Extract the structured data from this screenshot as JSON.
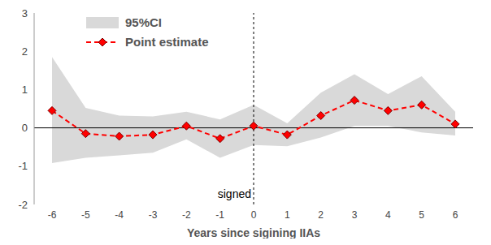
{
  "chart_data": {
    "type": "line",
    "x_label": "Years since sigining IIAs",
    "categories": [
      "-6",
      "-5",
      "-4",
      "-3",
      "-2",
      "-1",
      "0",
      "1",
      "2",
      "3",
      "4",
      "5",
      "6"
    ],
    "series": [
      {
        "name": "95%CI",
        "type": "area",
        "color": "#d9d9d9",
        "lower": [
          -0.92,
          -0.78,
          -0.72,
          -0.65,
          -0.3,
          -0.78,
          -0.45,
          -0.48,
          -0.25,
          0.05,
          0.05,
          -0.12,
          -0.2
        ],
        "upper": [
          1.85,
          0.52,
          0.32,
          0.3,
          0.42,
          0.22,
          0.6,
          0.12,
          0.92,
          1.4,
          0.88,
          1.35,
          0.42
        ]
      },
      {
        "name": "Point estimate",
        "type": "line",
        "color": "#ff0000",
        "marker": "diamond",
        "line_style": "dashed",
        "values": [
          0.45,
          -0.15,
          -0.22,
          -0.18,
          0.05,
          -0.28,
          0.05,
          -0.18,
          0.32,
          0.72,
          0.45,
          0.6,
          0.1
        ]
      }
    ],
    "annotations": [
      {
        "text": "signed",
        "x": "0"
      }
    ],
    "ylim": [
      -2,
      3
    ],
    "yticks": [
      -2,
      -1,
      0,
      1,
      2,
      3
    ],
    "grid": false,
    "legend": "upper left"
  }
}
